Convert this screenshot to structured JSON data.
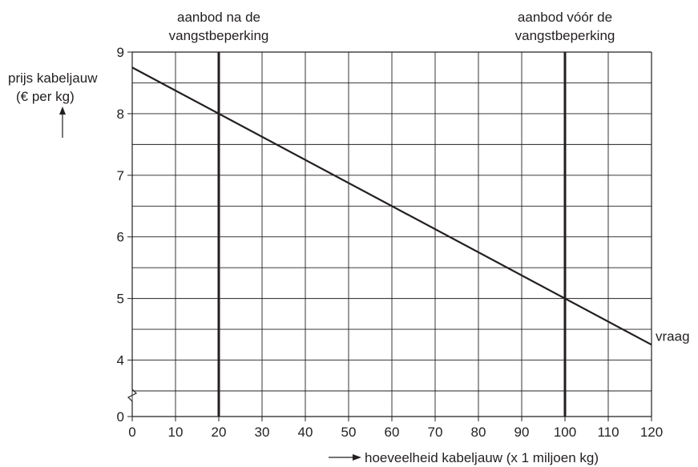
{
  "chart_data": {
    "type": "line",
    "x_ticks": [
      0,
      10,
      20,
      30,
      40,
      50,
      60,
      70,
      80,
      90,
      100,
      110,
      120
    ],
    "y_ticks": [
      0,
      4,
      5,
      6,
      7,
      8,
      9
    ],
    "xlim": [
      0,
      120
    ],
    "ylim": [
      0,
      9
    ],
    "y_axis_break": "between 0 and 4",
    "grid": true,
    "ylabel_line1": "prijs kabeljauw",
    "ylabel_line2": "(€ per kg)",
    "xlabel": "hoeveelheid kabeljauw (x 1 miljoen kg)",
    "series": [
      {
        "name": "vraag",
        "x": [
          0,
          120
        ],
        "y": [
          8.75,
          4.25
        ]
      }
    ],
    "supply_lines": [
      {
        "label_line1": "aanbod na de",
        "label_line2": "vangstbeperking",
        "x": 20
      },
      {
        "label_line1": "aanbod vóór de",
        "label_line2": "vangstbeperking",
        "x": 100
      }
    ],
    "colors": {
      "ink": "#231f20"
    }
  }
}
